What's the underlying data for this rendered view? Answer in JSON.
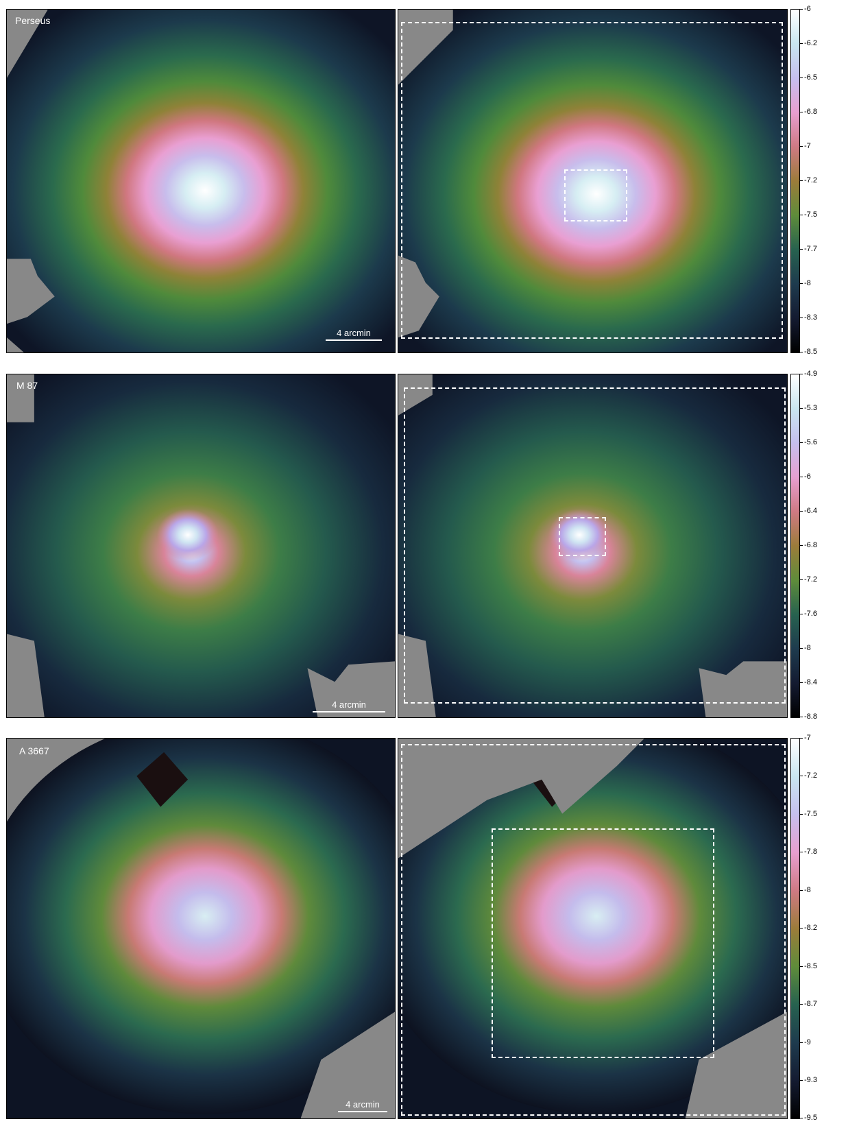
{
  "rows": [
    {
      "name": "Perseus",
      "label": "Perseus",
      "scale_label": "4 arcmin",
      "colorbar_ticks": [
        "-6",
        "-6.2",
        "-6.5",
        "-6.8",
        "-7",
        "-7.2",
        "-7.5",
        "-7.7",
        "-8",
        "-8.3",
        "-8.5"
      ]
    },
    {
      "name": "M 87",
      "label": "M 87",
      "scale_label": "4 arcmin",
      "colorbar_ticks": [
        "-4.9",
        "-5.3",
        "-5.6",
        "-6",
        "-6.4",
        "-6.8",
        "-7.2",
        "-7.6",
        "-8",
        "-8.4",
        "-8.8"
      ]
    },
    {
      "name": "A 3667",
      "label": "A 3667",
      "scale_label": "4 arcmin",
      "colorbar_ticks": [
        "-7",
        "-7.2",
        "-7.5",
        "-7.8",
        "-8",
        "-8.2",
        "-8.5",
        "-8.7",
        "-9",
        "-9.3",
        "-9.5"
      ]
    }
  ],
  "colors": {
    "mask_gray": "#888888",
    "background_dark": "#0d1424",
    "colormap": [
      "#ffffff",
      "#c9e6f0",
      "#c6bfee",
      "#e79fd0",
      "#cf7a84",
      "#9c7c3a",
      "#5f8c3a",
      "#27624f",
      "#1e3b4e",
      "#141b31",
      "#000000"
    ]
  }
}
